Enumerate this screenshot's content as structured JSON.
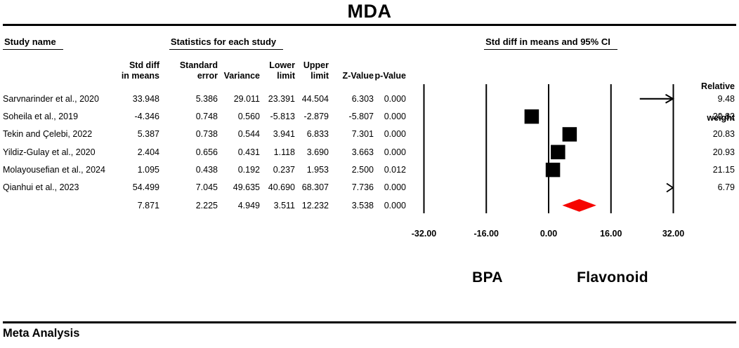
{
  "title": "MDA",
  "table": {
    "study_name_header": "Study name",
    "stats_group_header": "Statistics for each study",
    "ci_group_header": "Std diff in means and 95% CI",
    "relative_weight_header": {
      "line1": "Relative",
      "line2": "weight"
    },
    "columns": [
      {
        "line1": "Std diff",
        "line2": "in means"
      },
      {
        "line1": "Standard",
        "line2": "error"
      },
      {
        "line1": "",
        "line2": "Variance"
      },
      {
        "line1": "Lower",
        "line2": "limit"
      },
      {
        "line1": "Upper",
        "line2": "limit"
      },
      {
        "line1": "",
        "line2": "Z-Value"
      },
      {
        "line1": "",
        "line2": "p-Value"
      }
    ]
  },
  "group_labels": {
    "left": "BPA",
    "right": "Flavonoid"
  },
  "footer": {
    "label": "Meta Analysis"
  },
  "colors": {
    "marker": "#000000",
    "summary_diamond": "#f60400",
    "line": "#000000",
    "background": "#ffffff"
  },
  "chart_data": {
    "type": "scatter",
    "subtype": "forest-plot",
    "title": "MDA",
    "x_axis": {
      "min": -32,
      "max": 32,
      "tick_values": [
        -32,
        -16,
        0,
        16,
        32
      ],
      "tick_labels": [
        "-32.00",
        "-16.00",
        "0.00",
        "16.00",
        "32.00"
      ],
      "left_direction_label": "BPA",
      "right_direction_label": "Flavonoid"
    },
    "rows": [
      {
        "name": "Sarvnarinder et al., 2020",
        "std_diff": "33.948",
        "std_err": "5.386",
        "variance": "29.011",
        "lower": "23.391",
        "upper": "44.504",
        "z": "6.303",
        "p": "0.000",
        "weight": "9.48",
        "summary": false
      },
      {
        "name": "Soheila et al., 2019",
        "std_diff": "-4.346",
        "std_err": "0.748",
        "variance": "0.560",
        "lower": "-5.813",
        "upper": "-2.879",
        "z": "-5.807",
        "p": "0.000",
        "weight": "20.82",
        "summary": false
      },
      {
        "name": "Tekin and Çelebi, 2022",
        "std_diff": "5.387",
        "std_err": "0.738",
        "variance": "0.544",
        "lower": "3.941",
        "upper": "6.833",
        "z": "7.301",
        "p": "0.000",
        "weight": "20.83",
        "summary": false
      },
      {
        "name": "Yildiz-Gulay et al., 2020",
        "std_diff": "2.404",
        "std_err": "0.656",
        "variance": "0.431",
        "lower": "1.118",
        "upper": "3.690",
        "z": "3.663",
        "p": "0.000",
        "weight": "20.93",
        "summary": false
      },
      {
        "name": "Molayousefian et al., 2024",
        "std_diff": "1.095",
        "std_err": "0.438",
        "variance": "0.192",
        "lower": "0.237",
        "upper": "1.953",
        "z": "2.500",
        "p": "0.012",
        "weight": "21.15",
        "summary": false
      },
      {
        "name": "Qianhui et al., 2023",
        "std_diff": "54.499",
        "std_err": "7.045",
        "variance": "49.635",
        "lower": "40.690",
        "upper": "68.307",
        "z": "7.736",
        "p": "0.000",
        "weight": "6.79",
        "summary": false
      },
      {
        "name": "",
        "std_diff": "7.871",
        "std_err": "2.225",
        "variance": "4.949",
        "lower": "3.511",
        "upper": "12.232",
        "z": "3.538",
        "p": "0.000",
        "weight": "",
        "summary": true
      }
    ]
  }
}
